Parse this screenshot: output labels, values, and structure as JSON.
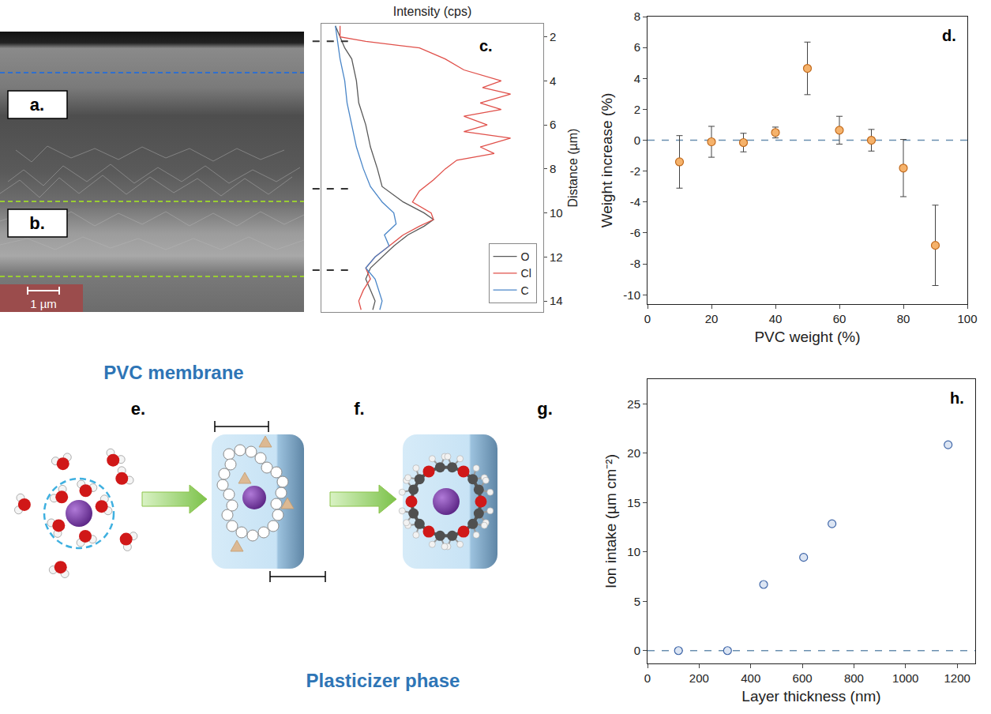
{
  "figure": {
    "micrograph": {
      "labels": [
        "a.",
        "b."
      ],
      "scale_bar": "1 µm"
    },
    "diagram": {
      "top_label": "PVC membrane",
      "bottom_label": "Plasticizer phase",
      "steps": [
        "e.",
        "f.",
        "g."
      ]
    }
  },
  "chart_data": [
    {
      "type": "line",
      "annotations": [
        "c."
      ],
      "x_label": "Intensity (cps)",
      "y_label": "Distance (µm)",
      "xlim": [
        0,
        95
      ],
      "ylim": [
        14.5,
        1.4
      ],
      "yticks": [
        2,
        4,
        6,
        8,
        10,
        12,
        14
      ],
      "tick_labels": "y",
      "legend": "bottom right",
      "boundaries": [
        2.2,
        8.9,
        12.6
      ],
      "series": [
        {
          "name": "O",
          "color": "#5a5a5a",
          "x": [
            6,
            10,
            13,
            15,
            16,
            19,
            21,
            24,
            26,
            35,
            44,
            48,
            44,
            37,
            31,
            26,
            21,
            19,
            23,
            22
          ],
          "y": [
            1.5,
            2.5,
            3.0,
            4.0,
            5.0,
            6.0,
            7.0,
            8.0,
            8.8,
            9.5,
            10.0,
            10.3,
            10.6,
            11.0,
            11.5,
            12.0,
            12.5,
            13.0,
            14.0,
            14.4
          ]
        },
        {
          "name": "Cl",
          "color": "#e0504a",
          "x": [
            8,
            8,
            19,
            42,
            53,
            61,
            77,
            69,
            81,
            68,
            77,
            61,
            71,
            61,
            81,
            68,
            74,
            58,
            53,
            48,
            42,
            39,
            47,
            48,
            42,
            35,
            29,
            23,
            19,
            21,
            18,
            16,
            17
          ],
          "y": [
            1.5,
            2.0,
            2.2,
            2.5,
            3.0,
            3.5,
            4.0,
            4.3,
            4.6,
            5.0,
            5.3,
            5.6,
            6.0,
            6.3,
            6.6,
            7.0,
            7.3,
            7.6,
            8.0,
            8.5,
            9.0,
            9.5,
            10.0,
            10.3,
            10.6,
            11.0,
            11.5,
            12.0,
            12.5,
            13.0,
            13.5,
            14.0,
            14.4
          ]
        },
        {
          "name": "C",
          "color": "#4a86c8",
          "x": [
            6,
            8,
            10,
            11,
            13,
            15,
            18,
            21,
            26,
            31,
            32,
            27,
            29,
            23,
            19,
            23,
            26,
            25
          ],
          "y": [
            1.5,
            3.0,
            4.0,
            5.0,
            6.0,
            7.0,
            8.0,
            8.8,
            9.5,
            10.0,
            10.5,
            11.0,
            11.5,
            12.0,
            12.5,
            13.0,
            14.0,
            14.4
          ]
        }
      ]
    },
    {
      "type": "scatter",
      "annotations": [
        "d."
      ],
      "x_label": "PVC weight (%)",
      "y_label": "Weight increase (%)",
      "x": [
        10,
        20,
        30,
        40,
        50,
        60,
        70,
        80,
        90
      ],
      "values": [
        -1.4,
        -0.1,
        -0.15,
        0.5,
        4.65,
        0.65,
        0.0,
        -1.8,
        -6.8
      ],
      "errors": [
        1.7,
        1.0,
        0.6,
        0.35,
        1.7,
        0.9,
        0.7,
        1.85,
        2.6
      ],
      "xlim": [
        0,
        100
      ],
      "xticks": [
        0,
        20,
        40,
        60,
        80,
        100
      ],
      "ylim": [
        -10.6,
        8
      ],
      "yticks": [
        -10,
        -8,
        -6,
        -4,
        -2,
        0,
        2,
        4,
        6,
        8
      ],
      "reference_line": 0,
      "color": "#f5b26b",
      "marker": "circle"
    },
    {
      "type": "scatter",
      "annotations": [
        "h."
      ],
      "x_label": "Layer thickness (nm)",
      "y_label": "Ion intake (µm cm⁻²)",
      "x": [
        120,
        310,
        450,
        605,
        715,
        1165
      ],
      "values": [
        0,
        0,
        6.7,
        9.45,
        12.85,
        20.85
      ],
      "xlim": [
        0,
        1270
      ],
      "xticks": [
        0,
        200,
        400,
        600,
        800,
        1000,
        1200
      ],
      "ylim": [
        -1.3,
        27.5
      ],
      "yticks": [
        0,
        5,
        10,
        15,
        20,
        25
      ],
      "reference_line": 0,
      "color": "#3f66a8",
      "marker": "circle"
    }
  ]
}
